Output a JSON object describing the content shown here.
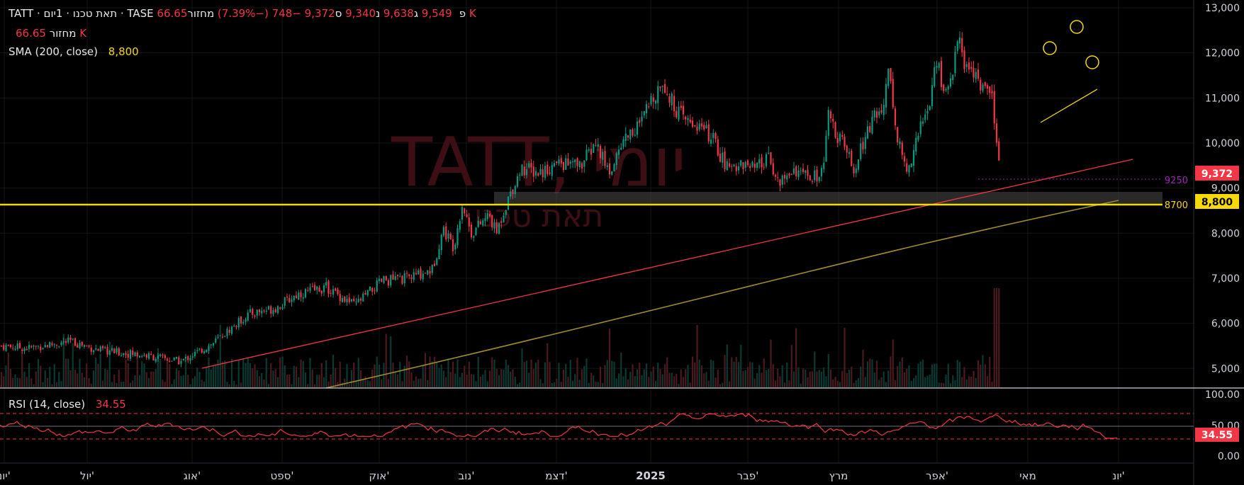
{
  "header": {
    "symbol": "TATT",
    "name": "תאת טכנו",
    "interval": "1יום",
    "exchange": "TASE",
    "separator": "·",
    "open_label": "פ",
    "open": "9,549",
    "high_label": "ג",
    "high": "9,638",
    "low_label": "נ",
    "low": "9,340",
    "close_label": "ס",
    "close": "9,372",
    "change": "−748 (−7.39%)",
    "volume_label": "מחזור",
    "volume": "66.65 K",
    "volume_row_label": "מחזור",
    "volume_row_value": "66.65 K",
    "sma_label": "SMA (200, close)",
    "sma_value": "8,800",
    "rsi_label": "RSI (14, close)",
    "rsi_value": "34.55"
  },
  "watermark": {
    "symbol": "TATT",
    "interval": "יומי",
    "name": "תאת טכנו"
  },
  "colors": {
    "up": "#089981",
    "down": "#f23645",
    "sma": "#9e8b2e",
    "trendline": "#f23645",
    "level": "#f5d90a",
    "rsi": "#f23645",
    "level_purple": "#9c27b0"
  },
  "chart_data": [
    {
      "type": "candlestick",
      "ylim": [
        4800,
        13000
      ],
      "y_ticks": [
        "13,000",
        "12,000",
        "11,000",
        "10,000",
        "9,000",
        "8,000",
        "7,000",
        "6,000",
        "5,000"
      ],
      "x_ticks": [
        "יונ'",
        "יול'",
        "אוג'",
        "ספט'",
        "אוק'",
        "נוב'",
        "דצמ'",
        "2025",
        "פבר'",
        "מרץ",
        "אפר'",
        "מאי",
        "יונ'"
      ],
      "price_path": [
        [
          0,
          5500
        ],
        [
          40,
          5450
        ],
        [
          100,
          5600
        ],
        [
          140,
          5400
        ],
        [
          200,
          5300
        ],
        [
          255,
          5150
        ],
        [
          300,
          5550
        ],
        [
          350,
          6200
        ],
        [
          390,
          6350
        ],
        [
          420,
          6650
        ],
        [
          460,
          6800
        ],
        [
          500,
          6400
        ],
        [
          540,
          6950
        ],
        [
          575,
          7000
        ],
        [
          610,
          7200
        ],
        [
          625,
          8100
        ],
        [
          640,
          7700
        ],
        [
          652,
          8650
        ],
        [
          665,
          8000
        ],
        [
          690,
          8400
        ],
        [
          700,
          8000
        ],
        [
          715,
          8700
        ],
        [
          735,
          9450
        ],
        [
          760,
          9350
        ],
        [
          790,
          9550
        ],
        [
          820,
          9500
        ],
        [
          840,
          10000
        ],
        [
          860,
          9350
        ],
        [
          880,
          10100
        ],
        [
          905,
          10450
        ],
        [
          920,
          11000
        ],
        [
          935,
          11400
        ],
        [
          948,
          10900
        ],
        [
          965,
          10500
        ],
        [
          985,
          10400
        ],
        [
          1005,
          10100
        ],
        [
          1025,
          9450
        ],
        [
          1045,
          9550
        ],
        [
          1065,
          9400
        ],
        [
          1085,
          9650
        ],
        [
          1100,
          9100
        ],
        [
          1120,
          9450
        ],
        [
          1140,
          9200
        ],
        [
          1160,
          9300
        ],
        [
          1168,
          10600
        ],
        [
          1180,
          10150
        ],
        [
          1195,
          9850
        ],
        [
          1205,
          9250
        ],
        [
          1215,
          9900
        ],
        [
          1230,
          10500
        ],
        [
          1245,
          10700
        ],
        [
          1252,
          11800
        ],
        [
          1265,
          10200
        ],
        [
          1280,
          9300
        ],
        [
          1290,
          10000
        ],
        [
          1300,
          10400
        ],
        [
          1312,
          10900
        ],
        [
          1322,
          11950
        ],
        [
          1332,
          11000
        ],
        [
          1342,
          11500
        ],
        [
          1355,
          12400
        ],
        [
          1362,
          11600
        ],
        [
          1372,
          11700
        ],
        [
          1380,
          11400
        ],
        [
          1390,
          11100
        ],
        [
          1400,
          11000
        ],
        [
          1406,
          9900
        ],
        [
          1412,
          9372
        ]
      ],
      "last_price": "9,372",
      "sma_value": "8,800",
      "level_label": "8700",
      "level_purple_label": "9250",
      "volume_bars": "yes"
    },
    {
      "type": "line",
      "series": [
        {
          "name": "RSI (14, close)"
        }
      ],
      "ylim": [
        0,
        100
      ],
      "y_ticks": [
        "100.00",
        "50.00",
        "0.00"
      ],
      "bands": [
        30,
        70
      ],
      "last_value": "34.55"
    }
  ]
}
